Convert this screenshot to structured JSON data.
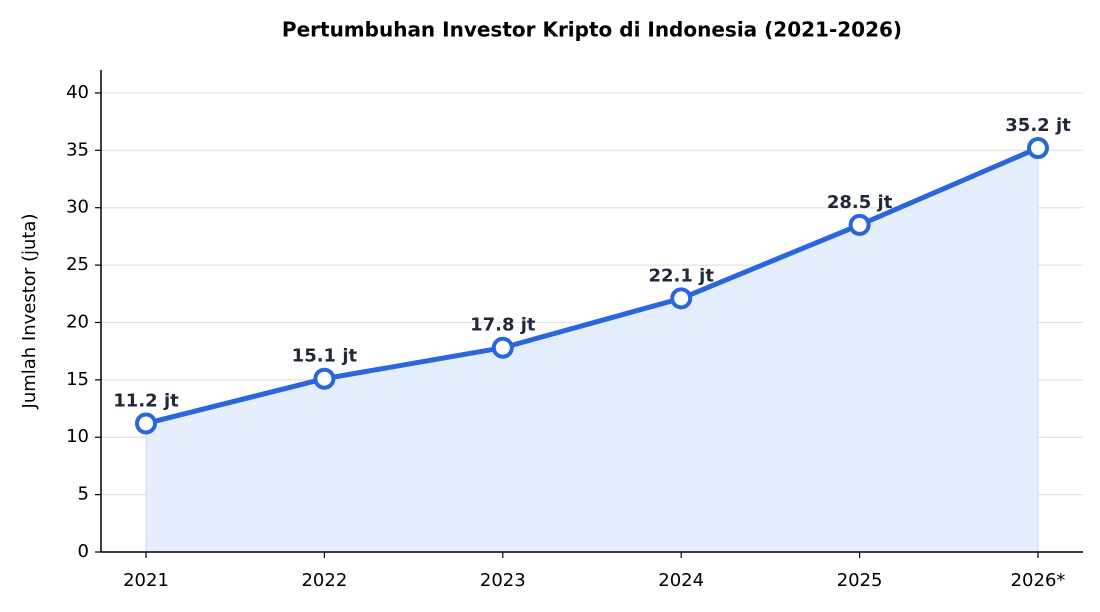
{
  "chart_data": {
    "type": "line",
    "title": "Pertumbuhan Investor Kripto di Indonesia (2021-2026)",
    "y_label": "Jumlah Investor (juta)",
    "categories": [
      "2021",
      "2022",
      "2023",
      "2024",
      "2025",
      "2026*"
    ],
    "values": [
      11.2,
      15.1,
      17.8,
      22.1,
      28.5,
      35.2
    ],
    "value_labels": [
      "11.2 jt",
      "15.1 jt",
      "17.8 jt",
      "22.1 jt",
      "28.5 jt",
      "35.2 jt"
    ],
    "color": "#2a66de",
    "area_color": "#e5eefc",
    "ylim": [
      0,
      42
    ],
    "yticks": [
      0,
      5,
      10,
      15,
      20,
      25,
      30,
      35,
      40
    ],
    "grid": true
  }
}
